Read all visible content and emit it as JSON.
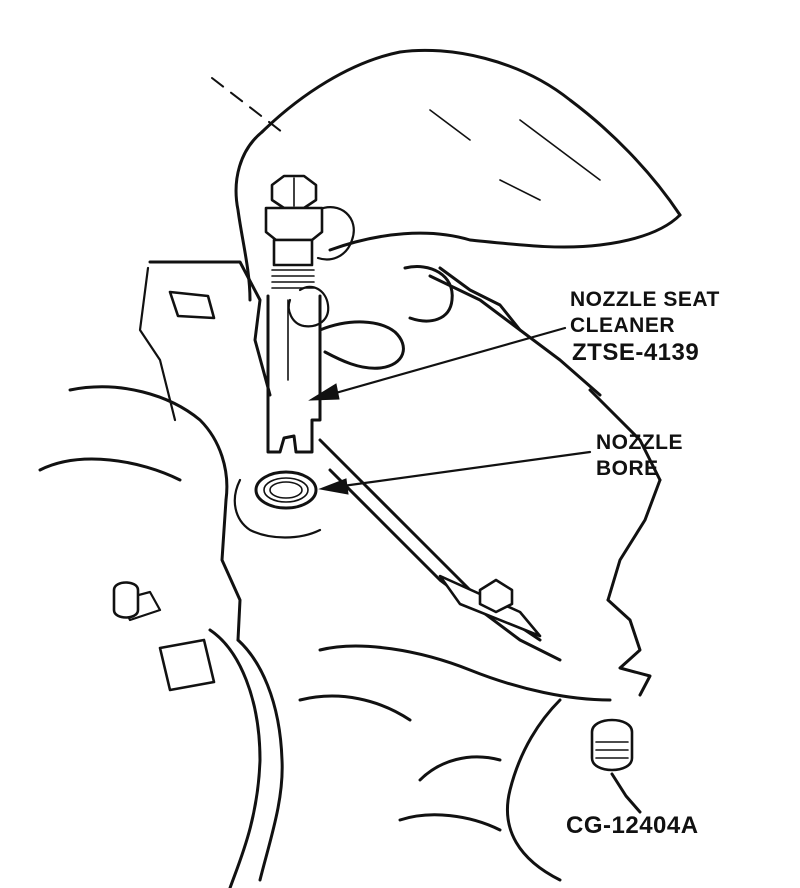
{
  "labels": {
    "tool_line1": "NOZZLE SEAT",
    "tool_line2": "CLEANER",
    "tool_number": "ZTSE-4139",
    "bore_line1": "NOZZLE",
    "bore_line2": "BORE",
    "figure_id": "CG-12404A"
  }
}
